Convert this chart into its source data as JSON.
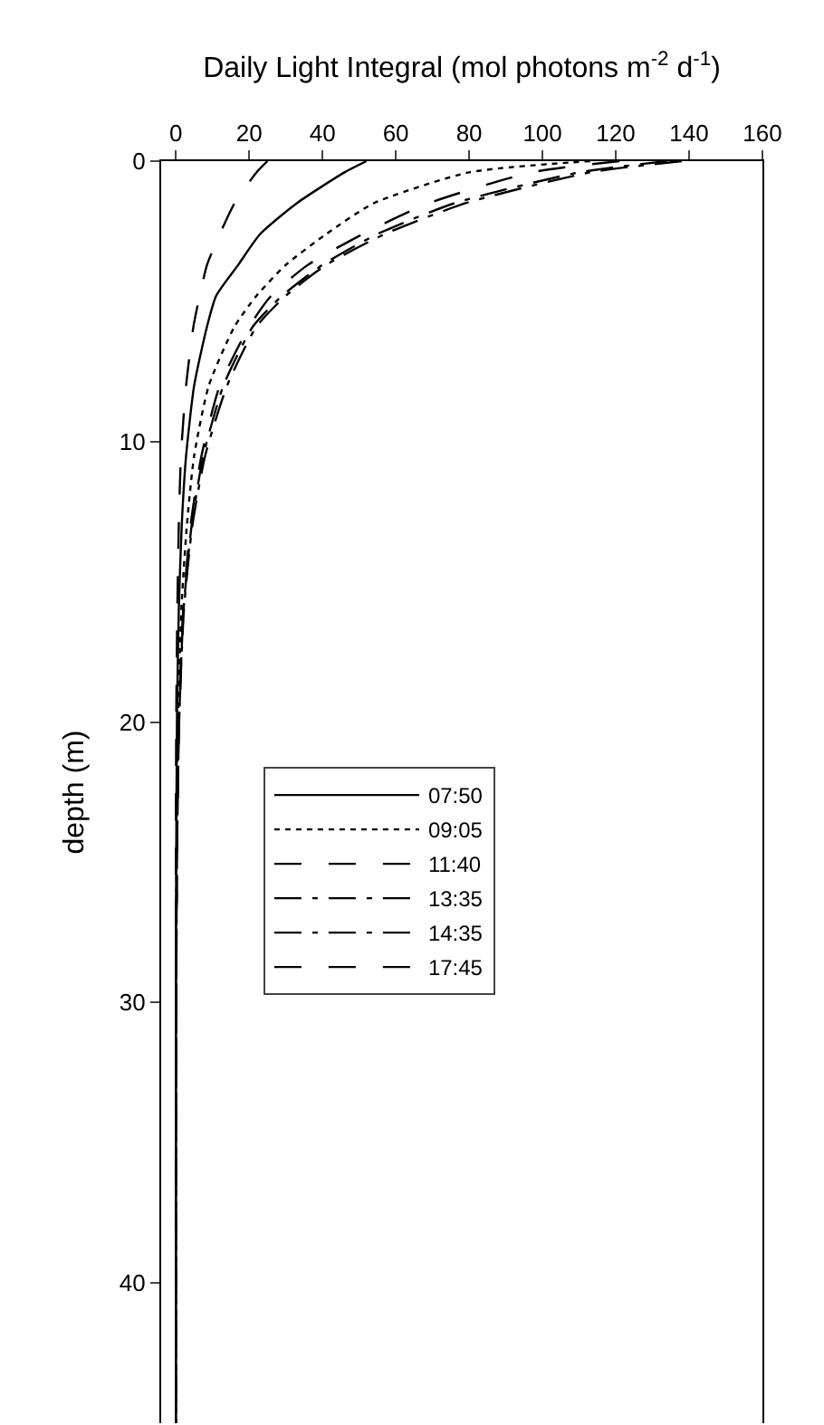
{
  "chart_data": {
    "type": "line",
    "xlabel": "Daily Light Integral (mol photons m$^{-2}$ d$^{-1}$)",
    "ylabel": "depth (m)",
    "series": [
      {
        "name": "07:50",
        "color": "#000000",
        "line_style": "solid",
        "values": [
          0,
          0.4,
          1.5,
          2.6,
          3.7,
          4.8,
          5.9,
          8,
          10.5,
          13,
          16,
          20,
          25,
          30,
          35,
          40,
          45
        ],
        "x": [
          52,
          46,
          33,
          23,
          17,
          11,
          8.5,
          5,
          2.8,
          1.6,
          0.8,
          0.3,
          0.1,
          0,
          0,
          0,
          0
        ]
      },
      {
        "name": "09:05",
        "color": "#000000",
        "line_style": "dotted",
        "values": [
          0,
          0.4,
          1.5,
          2.6,
          3.7,
          4.8,
          5.9,
          8,
          10.5,
          13,
          16,
          20,
          25,
          30,
          35,
          40,
          45
        ],
        "x": [
          113,
          80,
          54,
          41,
          30,
          22,
          16,
          9,
          5,
          3,
          1.5,
          0.6,
          0.2,
          0.1,
          0,
          0,
          0
        ]
      },
      {
        "name": "11:40",
        "color": "#000000",
        "line_style": "dashed",
        "values": [
          0,
          0.4,
          1.5,
          2.6,
          3.7,
          4.8,
          5.9,
          8,
          10.5,
          13,
          16,
          20,
          25,
          30,
          35,
          40,
          45
        ],
        "x": [
          121,
          97,
          69,
          51,
          36,
          26,
          20,
          12,
          7,
          4,
          2,
          0.8,
          0.3,
          0.1,
          0,
          0,
          0
        ]
      },
      {
        "name": "13:35",
        "color": "#000000",
        "line_style": "dashdot",
        "values": [
          0,
          0.4,
          1.5,
          2.6,
          3.7,
          4.8,
          5.9,
          8,
          10.5,
          13,
          16,
          20,
          25,
          30,
          35,
          40,
          45
        ],
        "x": [
          138,
          113,
          79,
          57,
          41,
          30,
          22,
          14,
          8,
          4.5,
          2.2,
          0.9,
          0.3,
          0.1,
          0,
          0,
          0
        ]
      },
      {
        "name": "14:35",
        "color": "#000000",
        "line_style": "dashdot",
        "values": [
          0,
          0.4,
          1.5,
          2.6,
          3.7,
          4.8,
          5.9,
          8,
          10.5,
          13,
          16,
          20,
          25,
          30,
          35,
          40,
          45
        ],
        "x": [
          134,
          110,
          76,
          55,
          40,
          29,
          21,
          13,
          7.5,
          4.3,
          2.1,
          0.9,
          0.3,
          0.1,
          0,
          0,
          0
        ]
      },
      {
        "name": "17:45",
        "color": "#000000",
        "line_style": "dashed",
        "values": [
          0,
          0.4,
          1.5,
          2.6,
          3.7,
          4.8,
          5.9,
          8,
          10.5,
          13,
          16,
          20,
          25,
          30,
          35,
          40,
          45
        ],
        "x": [
          25,
          22,
          16,
          12,
          8.5,
          6.5,
          4.8,
          2.8,
          1.4,
          0.8,
          0.4,
          0.1,
          0,
          0,
          0,
          0,
          0
        ]
      }
    ],
    "xlim": [
      -4,
      160
    ],
    "xticks": [
      0,
      20,
      40,
      60,
      80,
      100,
      120,
      140,
      160
    ],
    "ylim": [
      45,
      0
    ],
    "yticks": [
      0,
      10,
      20,
      30,
      40
    ],
    "legend": "center left",
    "marker": "none"
  }
}
